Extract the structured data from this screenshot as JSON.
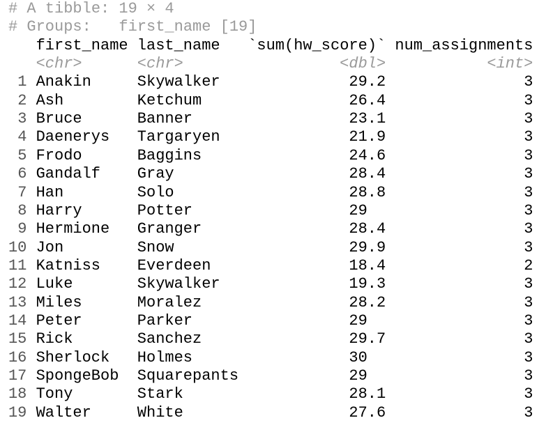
{
  "header": {
    "line1": "# A tibble: 19 × 4",
    "line2": "# Groups:   first_name [19]"
  },
  "table": {
    "columns": [
      "first_name",
      "last_name",
      "`sum(hw_score)`",
      "num_assignments"
    ],
    "types": [
      "<chr>",
      "<chr>",
      "<dbl>",
      "<int>"
    ],
    "row_numbers": [
      1,
      2,
      3,
      4,
      5,
      6,
      7,
      8,
      9,
      10,
      11,
      12,
      13,
      14,
      15,
      16,
      17,
      18,
      19
    ],
    "rows": [
      [
        "Anakin",
        "Skywalker",
        29.2,
        3
      ],
      [
        "Ash",
        "Ketchum",
        26.4,
        3
      ],
      [
        "Bruce",
        "Banner",
        23.1,
        3
      ],
      [
        "Daenerys",
        "Targaryen",
        21.9,
        3
      ],
      [
        "Frodo",
        "Baggins",
        24.6,
        3
      ],
      [
        "Gandalf",
        "Gray",
        28.4,
        3
      ],
      [
        "Han",
        "Solo",
        28.8,
        3
      ],
      [
        "Harry",
        "Potter",
        29,
        3
      ],
      [
        "Hermione",
        "Granger",
        28.4,
        3
      ],
      [
        "Jon",
        "Snow",
        29.9,
        3
      ],
      [
        "Katniss",
        "Everdeen",
        18.4,
        2
      ],
      [
        "Luke",
        "Skywalker",
        19.3,
        3
      ],
      [
        "Miles",
        "Moralez",
        28.2,
        3
      ],
      [
        "Peter",
        "Parker",
        29,
        3
      ],
      [
        "Rick",
        "Sanchez",
        29.7,
        3
      ],
      [
        "Sherlock",
        "Holmes",
        30,
        3
      ],
      [
        "SpongeBob",
        "Squarepants",
        29,
        3
      ],
      [
        "Tony",
        "Stark",
        28.1,
        3
      ],
      [
        "Walter",
        "White",
        27.6,
        3
      ]
    ]
  }
}
